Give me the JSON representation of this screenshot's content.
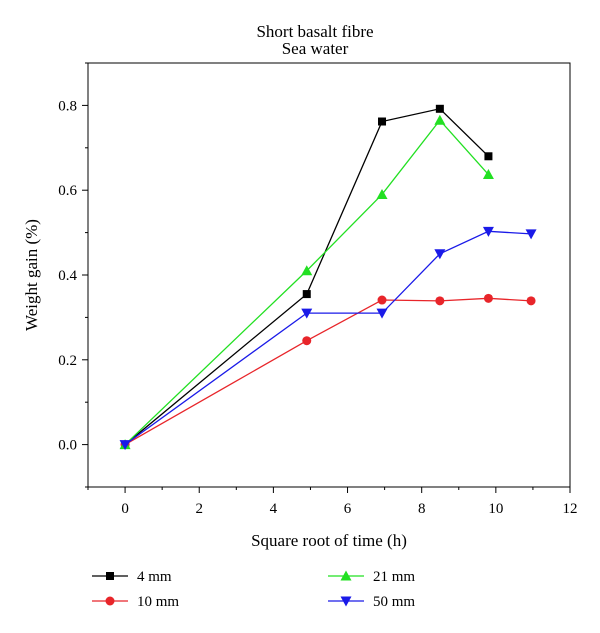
{
  "chart_data": {
    "type": "line",
    "title": "Short basalt fibre",
    "subtitle": "Sea water",
    "xlabel": "Square root of time (h)",
    "ylabel": "Weight gain (%)",
    "xlim": [
      -1,
      12
    ],
    "ylim": [
      -0.1,
      0.9
    ],
    "xticks": [
      "0",
      "2",
      "4",
      "6",
      "8",
      "10",
      "12"
    ],
    "yticks": [
      "0.0",
      "0.2",
      "0.4",
      "0.6",
      "0.8"
    ],
    "legend_position": "bottom",
    "series": [
      {
        "name": "4 mm",
        "color": "#000000",
        "marker": "square",
        "x": [
          0,
          4.9,
          6.93,
          8.49,
          9.8
        ],
        "y": [
          0.0,
          0.355,
          0.762,
          0.792,
          0.68
        ]
      },
      {
        "name": "10 mm",
        "color": "#e8252a",
        "marker": "circle",
        "x": [
          0,
          4.9,
          6.93,
          8.49,
          9.8,
          10.95
        ],
        "y": [
          0.0,
          0.245,
          0.341,
          0.339,
          0.345,
          0.339
        ]
      },
      {
        "name": "21 mm",
        "color": "#22e022",
        "marker": "triangle-up",
        "x": [
          0,
          4.9,
          6.93,
          8.49,
          9.8
        ],
        "y": [
          0.0,
          0.41,
          0.59,
          0.765,
          0.637
        ]
      },
      {
        "name": "50 mm",
        "color": "#1a1ae8",
        "marker": "triangle-down",
        "x": [
          0,
          4.9,
          6.93,
          8.49,
          9.8,
          10.95
        ],
        "y": [
          0.0,
          0.31,
          0.31,
          0.45,
          0.503,
          0.497
        ]
      }
    ]
  }
}
